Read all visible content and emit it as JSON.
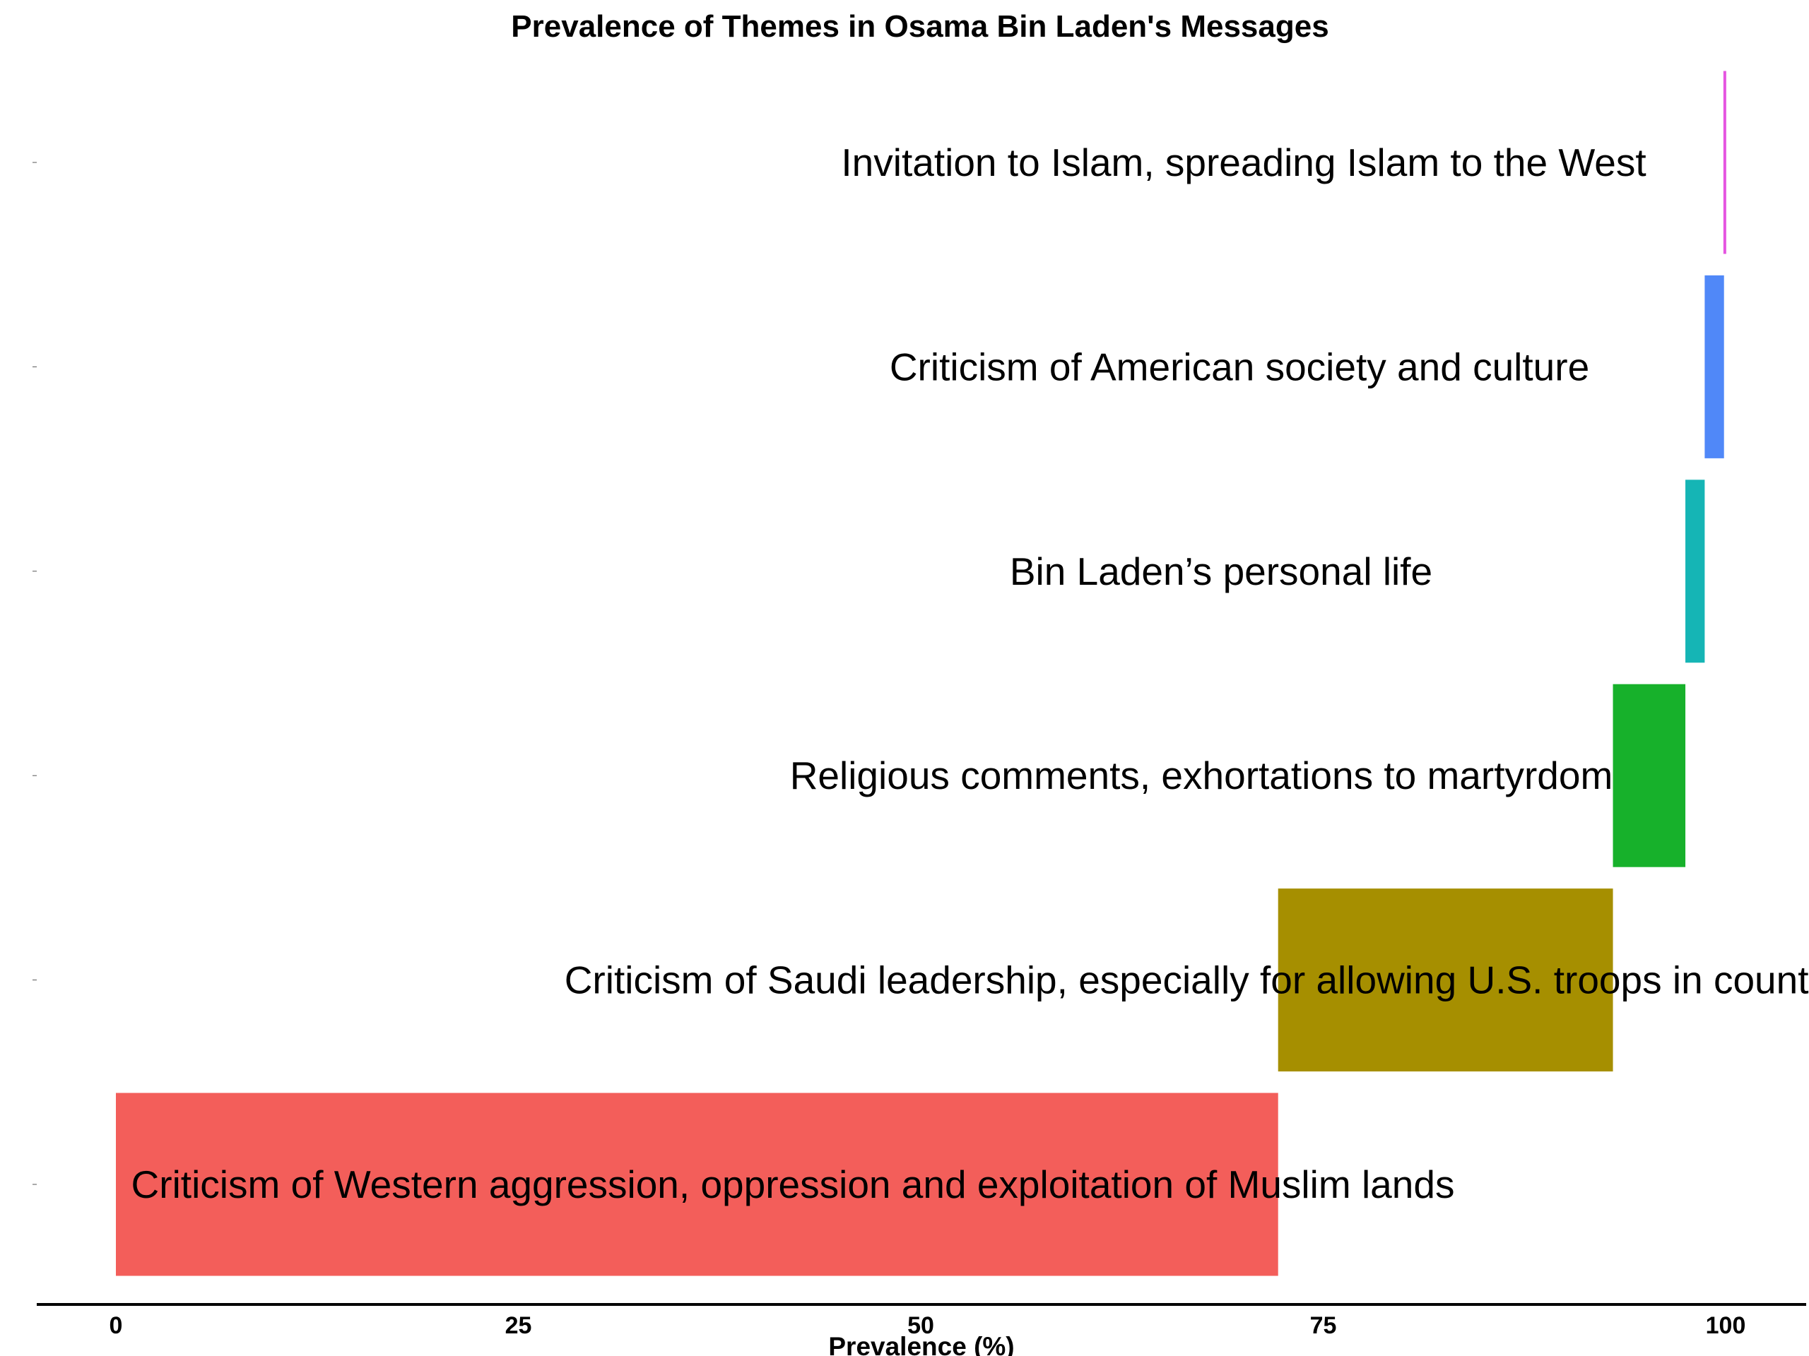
{
  "chart_data": {
    "type": "bar",
    "orientation": "horizontal",
    "stacked": "waterfall",
    "title": "Prevalence of Themes in Osama Bin Laden's Messages",
    "xlabel": "Prevalence (%)",
    "ylabel": "",
    "xlim": [
      -5,
      105
    ],
    "xticks": [
      0,
      25,
      50,
      75,
      100
    ],
    "grid": false,
    "legend": "none",
    "categories": [
      "Criticism of Western aggression, oppression and exploitation of Muslim lands",
      "Criticism of Saudi leadership, especially for allowing U.S. troops in country",
      "Religious comments, exhortations to martyrdom",
      "Bin Laden’s personal life",
      "Criticism of American society and culture",
      "Invitation to Islam, spreading Islam to the West"
    ],
    "values": [
      72.2,
      20.8,
      4.5,
      1.2,
      1.2,
      0.1
    ],
    "starts": [
      0,
      72.2,
      93.0,
      97.5,
      98.7,
      99.9
    ],
    "ends": [
      72.2,
      93.0,
      97.5,
      98.7,
      99.9,
      100.0
    ],
    "colors": [
      "#F35E5A",
      "#A68F00",
      "#17B12B",
      "#15B5B5",
      "#5088F8",
      "#E555E1"
    ]
  }
}
